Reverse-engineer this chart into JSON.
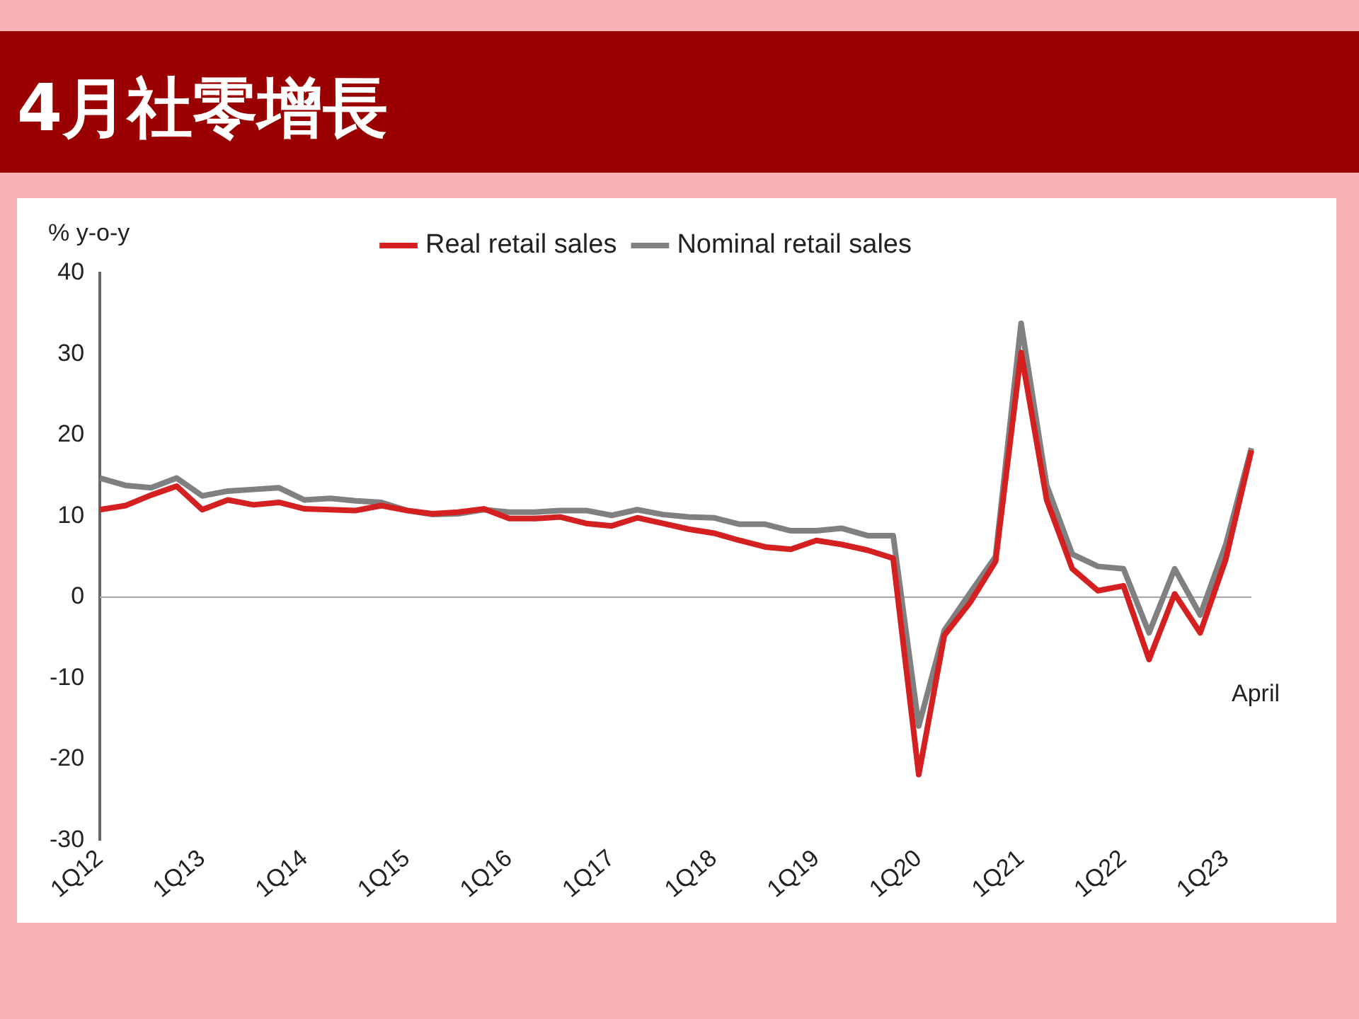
{
  "chart_data": {
    "type": "line",
    "title": "4月社零增長",
    "ylabel": "% y-o-y",
    "categories": [
      "1Q12",
      null,
      null,
      null,
      "1Q13",
      null,
      null,
      null,
      "1Q14",
      null,
      null,
      null,
      "1Q15",
      null,
      null,
      null,
      "1Q16",
      null,
      null,
      null,
      "1Q17",
      null,
      null,
      null,
      "1Q18",
      null,
      null,
      null,
      "1Q19",
      null,
      null,
      null,
      "1Q20",
      null,
      null,
      null,
      "1Q21",
      null,
      null,
      null,
      "1Q22",
      null,
      null,
      null,
      "1Q23",
      null
    ],
    "series": [
      {
        "name": "Real retail sales",
        "color": "#d42020",
        "values": [
          10.8,
          11.3,
          12.6,
          13.7,
          10.8,
          12.0,
          11.4,
          11.7,
          10.9,
          10.8,
          10.7,
          11.3,
          10.7,
          10.3,
          10.5,
          10.9,
          9.7,
          9.7,
          9.9,
          9.1,
          8.8,
          9.8,
          9.1,
          8.4,
          7.9,
          7.0,
          6.2,
          5.9,
          7.0,
          6.5,
          5.8,
          4.8,
          -21.9,
          -4.7,
          -0.7,
          4.4,
          30.2,
          12.0,
          3.5,
          0.8,
          1.4,
          -7.7,
          0.4,
          -4.4,
          4.7,
          18.1
        ]
      },
      {
        "name": "Nominal retail sales",
        "color": "#808080",
        "values": [
          14.7,
          13.8,
          13.5,
          14.7,
          12.5,
          13.1,
          13.3,
          13.5,
          12.0,
          12.2,
          11.9,
          11.7,
          10.7,
          10.2,
          10.3,
          10.8,
          10.5,
          10.5,
          10.7,
          10.7,
          10.1,
          10.8,
          10.2,
          9.9,
          9.8,
          9.0,
          9.0,
          8.2,
          8.2,
          8.5,
          7.6,
          7.6,
          -15.9,
          -4.1,
          0.5,
          5.0,
          33.8,
          13.8,
          5.3,
          3.8,
          3.5,
          -4.4,
          3.5,
          -2.2,
          6.5,
          18.4
        ]
      }
    ],
    "ylim": [
      -30,
      40
    ],
    "yticks": [
      -30,
      -20,
      -10,
      0,
      10,
      20,
      30,
      40
    ],
    "annotations": [
      "April"
    ],
    "ref_lines": [
      {
        "axis": "y",
        "value": 0,
        "color": "#aaaaaa"
      }
    ],
    "legend": "top",
    "grid": false,
    "marker": "none",
    "line_style": "solid"
  }
}
